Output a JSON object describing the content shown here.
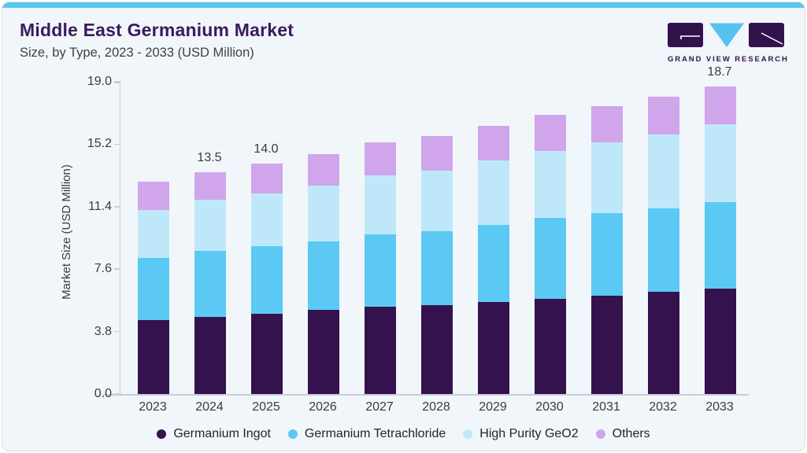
{
  "header": {
    "title": "Middle East Germanium Market",
    "subtitle": "Size, by Type, 2023 - 2033 (USD Million)",
    "logo_caption": "GRAND VIEW RESEARCH"
  },
  "colors": {
    "accent_topbar": "#5bc6ef",
    "card_background": "#f1f6fa",
    "title_text": "#3b1a5e",
    "axis_line": "#c8cdd5",
    "tick_text": "#3a3a42",
    "logo_purple": "#32124d",
    "logo_blue": "#56c2ee"
  },
  "chart_data": {
    "type": "bar",
    "stacked": true,
    "title": "Middle East Germanium Market Size, by Type, 2023 - 2033 (USD Million)",
    "xlabel": "",
    "ylabel": "Market Size (USD Million)",
    "ylim": [
      0,
      19.0
    ],
    "yticks": [
      "0.0",
      "3.8",
      "7.6",
      "11.4",
      "15.2",
      "19.0"
    ],
    "grid": false,
    "legend_position": "bottom",
    "categories": [
      "2023",
      "2024",
      "2025",
      "2026",
      "2027",
      "2028",
      "2029",
      "2030",
      "2031",
      "2032",
      "2033"
    ],
    "series": [
      {
        "name": "Germanium Ingot",
        "color": "#34124e",
        "values": [
          4.5,
          4.7,
          4.9,
          5.1,
          5.3,
          5.4,
          5.6,
          5.8,
          6.0,
          6.2,
          6.4
        ]
      },
      {
        "name": "Germanium Tetrachloride",
        "color": "#5bc9f3",
        "values": [
          3.8,
          4.0,
          4.1,
          4.2,
          4.4,
          4.5,
          4.7,
          4.9,
          5.0,
          5.1,
          5.3
        ]
      },
      {
        "name": "High Purity GeO2",
        "color": "#bee8fa",
        "values": [
          2.9,
          3.1,
          3.2,
          3.4,
          3.6,
          3.7,
          3.9,
          4.1,
          4.3,
          4.5,
          4.7
        ]
      },
      {
        "name": "Others",
        "color": "#d0a5eb",
        "values": [
          1.7,
          1.7,
          1.8,
          1.9,
          2.0,
          2.1,
          2.1,
          2.2,
          2.2,
          2.3,
          2.3
        ]
      }
    ],
    "totals": [
      12.9,
      13.5,
      14.0,
      14.6,
      15.3,
      15.7,
      16.3,
      17.0,
      17.5,
      18.1,
      18.7
    ],
    "total_labels": {
      "2024": "13.5",
      "2025": "14.0",
      "2033": "18.7"
    }
  }
}
